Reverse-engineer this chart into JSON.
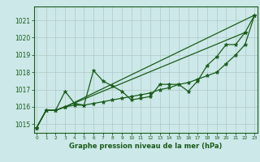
{
  "xlabel": "Graphe pression niveau de la mer (hPa)",
  "bg_color": "#cce8e8",
  "grid_color": "#b0c8c8",
  "line_color": "#1a5c1a",
  "x_ticks": [
    0,
    1,
    2,
    3,
    4,
    5,
    6,
    7,
    8,
    9,
    10,
    11,
    12,
    13,
    14,
    15,
    16,
    17,
    18,
    19,
    20,
    21,
    22,
    23
  ],
  "ylim": [
    1014.5,
    1021.8
  ],
  "xlim": [
    -0.3,
    23.3
  ],
  "yticks": [
    1015,
    1016,
    1017,
    1018,
    1019,
    1020,
    1021
  ],
  "line3": [
    1014.8,
    1015.8,
    1015.8,
    1016.9,
    1016.2,
    1016.1,
    1018.1,
    1017.5,
    1017.2,
    1016.9,
    1016.4,
    1016.5,
    1016.6,
    1017.3,
    1017.3,
    1017.3,
    1016.9,
    1017.5,
    1018.4,
    1018.9,
    1019.6,
    1019.6,
    1020.3,
    1021.3
  ],
  "line4": [
    1014.8,
    1015.8,
    1015.8,
    1016.0,
    1016.1,
    1016.1,
    1016.2,
    1016.3,
    1016.4,
    1016.5,
    1016.6,
    1016.7,
    1016.8,
    1017.0,
    1017.1,
    1017.3,
    1017.4,
    1017.6,
    1017.8,
    1018.0,
    1018.5,
    1019.0,
    1019.6,
    1021.3
  ],
  "line1_x": [
    0,
    1,
    2,
    3,
    23
  ],
  "line1_y": [
    1014.8,
    1015.8,
    1015.8,
    1016.0,
    1021.3
  ],
  "line2_x": [
    0,
    1,
    2,
    3,
    22
  ],
  "line2_y": [
    1014.8,
    1015.8,
    1015.8,
    1016.0,
    1020.3
  ]
}
